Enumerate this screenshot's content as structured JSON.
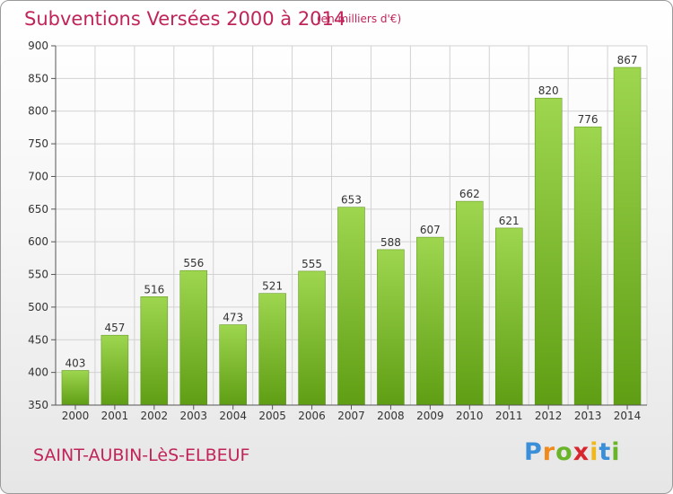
{
  "title": "Subventions Versées 2000 à 2014",
  "unit_note": "(en milliers d'€)",
  "commune": "SAINT-AUBIN-LèS-ELBEUF",
  "brand": {
    "letters": [
      "P",
      "r",
      "o",
      "x",
      "i",
      "t",
      "i"
    ],
    "colors": [
      "#3a8fd8",
      "#f08a1c",
      "#6ab42a",
      "#d8262e",
      "#f0b81c",
      "#3a8fd8",
      "#6ab42a"
    ]
  },
  "colors": {
    "accent": "#c0245a",
    "bar_top": "#9ed64f",
    "bar_bottom": "#5f9e14",
    "grid": "#d2d2d2",
    "axis": "#555555"
  },
  "chart_data": {
    "type": "bar",
    "categories": [
      "2000",
      "2001",
      "2002",
      "2003",
      "2004",
      "2005",
      "2006",
      "2007",
      "2008",
      "2009",
      "2010",
      "2011",
      "2012",
      "2013",
      "2014"
    ],
    "values": [
      403,
      457,
      516,
      556,
      473,
      521,
      555,
      653,
      588,
      607,
      662,
      621,
      820,
      776,
      867
    ],
    "ylim": [
      350,
      900
    ],
    "yticks": [
      350,
      400,
      450,
      500,
      550,
      600,
      650,
      700,
      750,
      800,
      850,
      900
    ],
    "grid": true,
    "data_labels": true
  }
}
